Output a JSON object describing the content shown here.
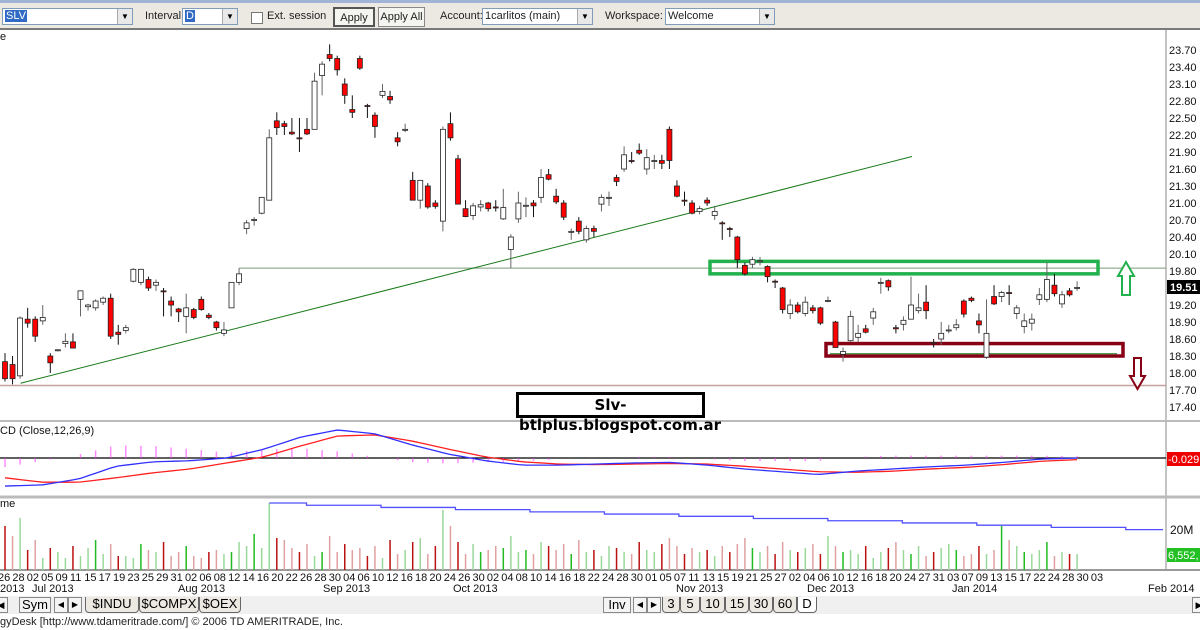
{
  "toolbar": {
    "symbol": "SLV",
    "interval_label": "Interval:",
    "interval": "D",
    "ext_session_label": "Ext. session",
    "ext_session_checked": false,
    "apply": "Apply",
    "apply_all": "Apply All",
    "account_label": "Account:",
    "account": "1carlitos (main)",
    "workspace_label": "Workspace:",
    "workspace": "Welcome"
  },
  "price_panel": {
    "label": "e",
    "ticks": [
      "23.70",
      "23.40",
      "23.10",
      "22.80",
      "22.50",
      "22.20",
      "21.90",
      "21.60",
      "21.30",
      "21.00",
      "20.70",
      "20.40",
      "20.10",
      "19.80",
      "19.20",
      "18.90",
      "18.60",
      "18.30",
      "18.00",
      "17.70",
      "17.40"
    ],
    "last_price": "19.51",
    "watermark": "Slv- btlplus.blogspot.com.ar",
    "colors": {
      "up": "#ffffff",
      "down": "#ff0000",
      "trend": "#1a7a1a",
      "resistance_box": "#22b14c",
      "support_box": "#880015",
      "support_line": "#c8a0a0"
    },
    "annotations": {
      "trendline": {
        "from_price": 17.82,
        "to_price": 21.82
      },
      "horizontal_line_price": 19.85,
      "lower_line_price": 17.78,
      "resistance_zone": [
        19.75,
        19.97
      ],
      "support_zone": [
        18.3,
        18.52
      ],
      "up_arrow": "arrow-up",
      "down_arrow": "arrow-down"
    }
  },
  "candles": [
    [
      18.2,
      18.35,
      17.85,
      17.9
    ],
    [
      18.15,
      18.3,
      17.8,
      17.9
    ],
    [
      17.95,
      19.0,
      17.9,
      18.97
    ],
    [
      18.95,
      19.15,
      18.8,
      18.88
    ],
    [
      18.95,
      19.0,
      18.55,
      18.65
    ],
    [
      18.92,
      19.2,
      18.85,
      18.98
    ],
    [
      18.3,
      18.35,
      18.0,
      18.18
    ],
    [
      18.4,
      18.42,
      18.38,
      18.41
    ],
    [
      18.52,
      18.7,
      18.45,
      18.56
    ],
    [
      18.55,
      18.7,
      18.45,
      18.44
    ],
    [
      19.3,
      19.45,
      19.0,
      19.45
    ],
    [
      19.17,
      19.22,
      19.1,
      19.2
    ],
    [
      19.15,
      19.3,
      19.1,
      19.27
    ],
    [
      19.25,
      19.35,
      19.2,
      19.32
    ],
    [
      19.32,
      19.4,
      18.6,
      18.65
    ],
    [
      18.72,
      18.85,
      18.5,
      18.68
    ],
    [
      18.75,
      18.85,
      18.7,
      18.8
    ],
    [
      19.62,
      19.85,
      19.6,
      19.83
    ],
    [
      19.6,
      19.84,
      19.55,
      19.83
    ],
    [
      19.65,
      19.7,
      19.45,
      19.5
    ],
    [
      19.55,
      19.65,
      19.45,
      19.6
    ],
    [
      19.45,
      19.5,
      19.0,
      19.44
    ],
    [
      19.27,
      19.35,
      19.0,
      19.2
    ],
    [
      19.13,
      19.15,
      18.9,
      19.08
    ],
    [
      19.0,
      19.4,
      18.7,
      19.15
    ],
    [
      19.12,
      19.15,
      18.95,
      18.98
    ],
    [
      19.3,
      19.35,
      19.1,
      19.12
    ],
    [
      19.02,
      19.06,
      18.95,
      18.98
    ],
    [
      18.9,
      18.92,
      18.75,
      18.8
    ],
    [
      18.7,
      18.9,
      18.65,
      18.76
    ],
    [
      19.15,
      19.6,
      19.15,
      19.6
    ],
    [
      19.6,
      19.85,
      19.55,
      19.75
    ],
    [
      20.55,
      20.7,
      20.45,
      20.65
    ],
    [
      20.7,
      20.75,
      20.6,
      20.71
    ],
    [
      20.82,
      21.1,
      20.8,
      21.1
    ],
    [
      21.05,
      22.3,
      21.05,
      22.15
    ],
    [
      22.45,
      22.6,
      22.2,
      22.33
    ],
    [
      22.4,
      22.45,
      22.2,
      22.35
    ],
    [
      22.25,
      22.5,
      22.2,
      22.22
    ],
    [
      22.15,
      22.5,
      21.9,
      22.14
    ],
    [
      22.3,
      22.5,
      22.2,
      22.22
    ],
    [
      22.3,
      23.3,
      22.3,
      23.15
    ],
    [
      23.25,
      23.5,
      22.9,
      23.45
    ],
    [
      23.62,
      23.8,
      23.5,
      23.55
    ],
    [
      23.55,
      23.6,
      23.25,
      23.35
    ],
    [
      23.1,
      23.2,
      22.75,
      22.9
    ],
    [
      22.65,
      22.9,
      22.5,
      22.6
    ],
    [
      23.55,
      23.6,
      23.35,
      23.38
    ],
    [
      22.72,
      22.75,
      22.5,
      22.71
    ],
    [
      22.55,
      22.6,
      22.15,
      22.35
    ],
    [
      22.9,
      23.1,
      22.85,
      22.97
    ],
    [
      22.88,
      22.98,
      22.75,
      22.82
    ],
    [
      22.15,
      22.25,
      22.0,
      22.08
    ],
    [
      22.3,
      22.4,
      22.25,
      22.3
    ],
    [
      21.4,
      21.55,
      21.05,
      21.05
    ],
    [
      21.05,
      21.4,
      20.9,
      21.4
    ],
    [
      21.3,
      21.35,
      20.9,
      20.93
    ],
    [
      21.0,
      21.05,
      20.9,
      20.94
    ],
    [
      20.68,
      22.35,
      20.5,
      22.3
    ],
    [
      22.4,
      22.6,
      22.1,
      22.15
    ],
    [
      21.78,
      21.85,
      20.98,
      20.98
    ],
    [
      20.9,
      21.05,
      20.75,
      20.76
    ],
    [
      20.78,
      21.0,
      20.7,
      20.95
    ],
    [
      20.93,
      21.05,
      20.85,
      20.97
    ],
    [
      21.0,
      21.02,
      20.85,
      20.9
    ],
    [
      20.93,
      21.05,
      20.85,
      20.92
    ],
    [
      20.72,
      21.25,
      20.7,
      20.92
    ],
    [
      20.18,
      20.45,
      19.85,
      20.4
    ],
    [
      20.72,
      21.2,
      20.65,
      21.0
    ],
    [
      20.95,
      21.1,
      20.75,
      20.96
    ],
    [
      21.0,
      21.05,
      20.75,
      20.95
    ],
    [
      21.1,
      21.6,
      21.0,
      21.45
    ],
    [
      21.5,
      21.6,
      21.4,
      21.42
    ],
    [
      21.12,
      21.25,
      20.98,
      21.02
    ],
    [
      21.0,
      21.05,
      20.7,
      20.75
    ],
    [
      20.5,
      20.55,
      20.35,
      20.5
    ],
    [
      20.68,
      20.75,
      20.45,
      20.5
    ],
    [
      20.35,
      20.6,
      20.3,
      20.55
    ],
    [
      20.55,
      20.6,
      20.4,
      20.5
    ],
    [
      20.98,
      21.15,
      20.85,
      21.1
    ],
    [
      21.1,
      21.2,
      20.95,
      21.1
    ],
    [
      21.45,
      21.5,
      21.3,
      21.38
    ],
    [
      21.6,
      22.0,
      21.55,
      21.85
    ],
    [
      21.75,
      21.9,
      21.7,
      21.74
    ],
    [
      21.93,
      22.05,
      21.85,
      21.88
    ],
    [
      21.6,
      21.95,
      21.5,
      21.8
    ],
    [
      21.75,
      21.85,
      21.6,
      21.75
    ],
    [
      21.75,
      21.85,
      21.6,
      21.7
    ],
    [
      22.3,
      22.35,
      21.6,
      21.75
    ],
    [
      21.3,
      21.4,
      21.1,
      21.12
    ],
    [
      21.05,
      21.2,
      20.95,
      21.04
    ],
    [
      21.0,
      21.05,
      20.8,
      20.82
    ],
    [
      20.85,
      20.95,
      20.8,
      20.9
    ],
    [
      21.05,
      21.1,
      20.95,
      21.0
    ],
    [
      20.78,
      20.95,
      20.7,
      20.85
    ],
    [
      20.65,
      20.68,
      20.35,
      20.64
    ],
    [
      20.55,
      20.58,
      20.4,
      20.54
    ],
    [
      20.4,
      20.42,
      19.85,
      20.0
    ],
    [
      19.9,
      19.95,
      19.72,
      19.75
    ],
    [
      19.92,
      20.05,
      19.85,
      20.0
    ],
    [
      19.98,
      20.05,
      19.9,
      19.98
    ],
    [
      19.88,
      19.9,
      19.6,
      19.7
    ],
    [
      19.62,
      19.65,
      19.5,
      19.61
    ],
    [
      19.5,
      19.52,
      19.05,
      19.12
    ],
    [
      19.05,
      19.3,
      18.95,
      19.2
    ],
    [
      19.2,
      19.25,
      19.05,
      19.08
    ],
    [
      19.05,
      19.35,
      19.0,
      19.25
    ],
    [
      19.15,
      19.2,
      19.05,
      19.1
    ],
    [
      19.15,
      19.17,
      18.85,
      18.88
    ],
    [
      19.28,
      19.35,
      19.25,
      19.28
    ],
    [
      18.9,
      18.92,
      18.45,
      18.45
    ],
    [
      18.33,
      18.45,
      18.2,
      18.38
    ],
    [
      18.57,
      19.1,
      18.55,
      19.0
    ],
    [
      18.63,
      18.85,
      18.55,
      18.7
    ],
    [
      18.78,
      18.85,
      18.7,
      18.72
    ],
    [
      18.97,
      19.15,
      18.85,
      19.08
    ],
    [
      19.6,
      19.68,
      19.4,
      19.6
    ],
    [
      19.63,
      19.65,
      19.45,
      19.52
    ],
    [
      18.8,
      18.85,
      18.7,
      18.78
    ],
    [
      18.86,
      19.0,
      18.75,
      18.93
    ],
    [
      18.95,
      19.7,
      18.95,
      19.2
    ],
    [
      19.1,
      19.4,
      19.05,
      19.15
    ],
    [
      19.25,
      19.55,
      18.95,
      19.1
    ],
    [
      18.54,
      18.6,
      18.45,
      18.52
    ],
    [
      18.6,
      18.9,
      18.5,
      18.7
    ],
    [
      18.76,
      18.85,
      18.7,
      18.76
    ],
    [
      18.8,
      18.95,
      18.75,
      18.85
    ],
    [
      19.27,
      19.3,
      18.98,
      19.04
    ],
    [
      19.32,
      19.35,
      19.25,
      19.28
    ],
    [
      18.92,
      19.05,
      18.7,
      18.85
    ],
    [
      18.28,
      19.3,
      18.25,
      18.7
    ],
    [
      19.35,
      19.55,
      19.2,
      19.22
    ],
    [
      19.35,
      19.45,
      19.25,
      19.42
    ],
    [
      19.42,
      19.55,
      19.2,
      19.41
    ],
    [
      19.05,
      19.2,
      18.95,
      19.15
    ],
    [
      18.82,
      19.05,
      18.7,
      18.92
    ],
    [
      18.88,
      19.05,
      18.75,
      18.95
    ],
    [
      19.3,
      19.5,
      19.2,
      19.38
    ],
    [
      19.3,
      19.95,
      19.25,
      19.65
    ],
    [
      19.55,
      19.75,
      19.35,
      19.4
    ],
    [
      19.22,
      19.45,
      19.15,
      19.38
    ],
    [
      19.45,
      19.5,
      19.35,
      19.38
    ],
    [
      19.51,
      19.62,
      19.45,
      19.51
    ]
  ],
  "macd_panel": {
    "label": "CD (Close,12,26,9)",
    "value": "-0.029",
    "colors": {
      "macd": "#3030ff",
      "signal": "#ff2020",
      "histogram": "#ff40ff"
    },
    "macd": [
      -0.51,
      -0.49,
      -0.38,
      -0.15,
      -0.07,
      -0.05,
      0.0,
      0.16,
      0.38,
      0.51,
      0.44,
      0.24,
      0.07,
      -0.05,
      -0.13,
      -0.13,
      -0.11,
      -0.09,
      -0.08,
      -0.13,
      -0.2,
      -0.25,
      -0.3,
      -0.24,
      -0.2,
      -0.16,
      -0.13,
      -0.08,
      -0.02,
      0.0
    ],
    "signal": [
      -0.36,
      -0.44,
      -0.44,
      -0.36,
      -0.27,
      -0.2,
      -0.09,
      0.02,
      0.22,
      0.4,
      0.42,
      0.31,
      0.16,
      0.02,
      -0.07,
      -0.11,
      -0.12,
      -0.11,
      -0.1,
      -0.11,
      -0.15,
      -0.2,
      -0.25,
      -0.26,
      -0.24,
      -0.2,
      -0.17,
      -0.12,
      -0.06,
      -0.03
    ]
  },
  "volume_panel": {
    "label": "me",
    "axis_label": "20M",
    "value": "6,552,",
    "unit": "M",
    "avg_line": {
      "start": 33.5,
      "end": 20.2,
      "start_candle": 35
    },
    "volumes": [
      22,
      17,
      26,
      10,
      15,
      6,
      11,
      9,
      6,
      12,
      7,
      11,
      15,
      8,
      13,
      7,
      7,
      6,
      13,
      10,
      9,
      14,
      7,
      9,
      12,
      7,
      6,
      9,
      10,
      8,
      9,
      14,
      12,
      18,
      11,
      33.5,
      16,
      15,
      11,
      9,
      13,
      7,
      9,
      17,
      9,
      13,
      10,
      11,
      7,
      12,
      6,
      15,
      8,
      10,
      14,
      16,
      8,
      12,
      30,
      22,
      14,
      8,
      13,
      9,
      10,
      12,
      11,
      17,
      9,
      10,
      8,
      14,
      12,
      10,
      13,
      8,
      15,
      9,
      10,
      7,
      12,
      11,
      9,
      8,
      14,
      10,
      9,
      13,
      16,
      12,
      8,
      11,
      9,
      10,
      7,
      12,
      9,
      13,
      16,
      11,
      9,
      12,
      8,
      14,
      10,
      9,
      11,
      13,
      8,
      17,
      12,
      9,
      10,
      8,
      12,
      6,
      9,
      11,
      14,
      10,
      8,
      12,
      7,
      9,
      11,
      13,
      10,
      7,
      8,
      12,
      8,
      10,
      22,
      15,
      12,
      9,
      8,
      10,
      14,
      7,
      9,
      8,
      8,
      6.5
    ]
  },
  "date_axis": {
    "days": [
      "26",
      "28",
      "02",
      "05",
      "09",
      "11",
      "15",
      "17",
      "19",
      "23",
      "25",
      "29",
      "31",
      "02",
      "06",
      "08",
      "12",
      "14",
      "16",
      "20",
      "22",
      "26",
      "28",
      "30",
      "04",
      "06",
      "10",
      "12",
      "16",
      "18",
      "20",
      "24",
      "26",
      "30",
      "02",
      "04",
      "08",
      "10",
      "14",
      "16",
      "18",
      "22",
      "24",
      "28",
      "30",
      "01",
      "05",
      "07",
      "11",
      "13",
      "15",
      "19",
      "21",
      "25",
      "27",
      "02",
      "04",
      "06",
      "10",
      "12",
      "16",
      "18",
      "20",
      "24",
      "27",
      "31",
      "03",
      "07",
      "09",
      "13",
      "15",
      "17",
      "22",
      "24",
      "28",
      "30",
      "03"
    ],
    "months": [
      "2013",
      "Jul 2013",
      "Aug 2013",
      "Sep 2013",
      "Oct 2013",
      "Nov 2013",
      "Dec 2013",
      "Jan 2014",
      "Feb 2014"
    ]
  },
  "bottom_bar": {
    "sym": "Sym",
    "symbol_tabs": [
      "$INDU",
      "$COMPX",
      "$OEX"
    ],
    "inv": "Inv",
    "interval_tabs": [
      "3",
      "5",
      "10",
      "15",
      "30",
      "60",
      "D"
    ],
    "active_interval": "D"
  },
  "status_text": "gyDesk [http://www.tdameritrade.com/] © 2006 TD AMERITRADE, Inc."
}
